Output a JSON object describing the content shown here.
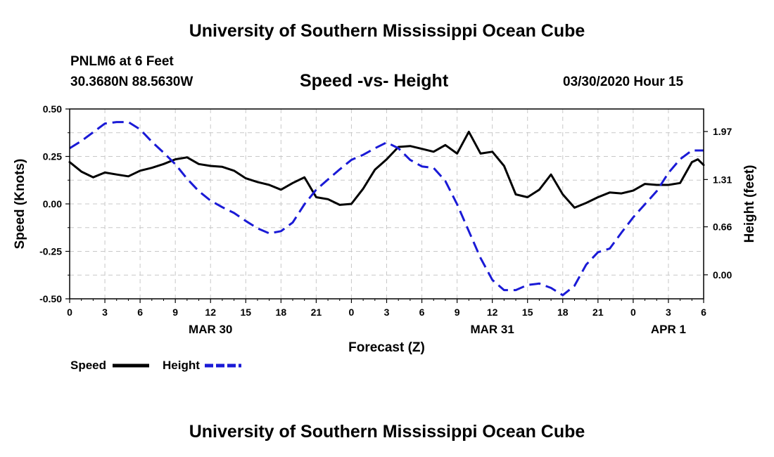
{
  "header": {
    "top_title": "University of Southern Mississippi Ocean Cube",
    "bottom_title": "University of Southern Mississippi Ocean Cube",
    "station": "PNLM6 at 6 Feet",
    "coordinates": "30.3680N 88.5630W",
    "chart_title": "Speed -vs- Height",
    "datetime": "03/30/2020 Hour 15"
  },
  "chart_data": {
    "type": "line",
    "title": "Speed -vs- Height",
    "xlabel": "Forecast (Z)",
    "ylabel_left": "Speed (Knots)",
    "ylabel_right": "Height (feet)",
    "x_range_hours": [
      0,
      54
    ],
    "x_tick_labels": [
      "0",
      "3",
      "6",
      "9",
      "12",
      "15",
      "18",
      "21",
      "0",
      "3",
      "6",
      "9",
      "12",
      "15",
      "18",
      "21",
      "0",
      "3",
      "6"
    ],
    "date_labels": [
      {
        "hour": 12,
        "label": "MAR 30"
      },
      {
        "hour": 36,
        "label": "MAR 31"
      },
      {
        "hour": 51,
        "label": "APR 1"
      }
    ],
    "left_axis": {
      "range": [
        -0.5,
        0.5
      ],
      "ticks": [
        "-0.50",
        "-0.25",
        "0.00",
        "0.25",
        "0.50"
      ],
      "tick_values": [
        -0.5,
        -0.25,
        0,
        0.25,
        0.5
      ]
    },
    "right_axis": {
      "range": [
        -0.33,
        2.28
      ],
      "ticks": [
        "0.00",
        "0.66",
        "1.31",
        "1.97"
      ],
      "tick_values": [
        0,
        0.66,
        1.31,
        1.97
      ]
    },
    "grid": true,
    "legend": [
      {
        "name": "Speed",
        "color": "#000000",
        "style": "solid"
      },
      {
        "name": "Height",
        "color": "#1a1ad6",
        "style": "dashed"
      }
    ],
    "series": [
      {
        "name": "Speed",
        "axis": "left",
        "color": "#000000",
        "style": "solid",
        "points": [
          [
            0,
            0.22
          ],
          [
            1,
            0.17
          ],
          [
            2,
            0.14
          ],
          [
            3,
            0.165
          ],
          [
            4,
            0.155
          ],
          [
            5,
            0.145
          ],
          [
            6,
            0.175
          ],
          [
            7,
            0.19
          ],
          [
            8,
            0.21
          ],
          [
            9,
            0.235
          ],
          [
            10,
            0.245
          ],
          [
            11,
            0.21
          ],
          [
            12,
            0.2
          ],
          [
            13,
            0.195
          ],
          [
            14,
            0.175
          ],
          [
            15,
            0.135
          ],
          [
            16,
            0.115
          ],
          [
            17,
            0.1
          ],
          [
            18,
            0.075
          ],
          [
            19,
            0.11
          ],
          [
            20,
            0.14
          ],
          [
            21,
            0.035
          ],
          [
            22,
            0.025
          ],
          [
            23,
            -0.005
          ],
          [
            24,
            0.0
          ],
          [
            25,
            0.08
          ],
          [
            26,
            0.18
          ],
          [
            27,
            0.235
          ],
          [
            28,
            0.3
          ],
          [
            29,
            0.305
          ],
          [
            30,
            0.29
          ],
          [
            31,
            0.275
          ],
          [
            32,
            0.31
          ],
          [
            33,
            0.265
          ],
          [
            34,
            0.38
          ],
          [
            35,
            0.265
          ],
          [
            36,
            0.275
          ],
          [
            37,
            0.2
          ],
          [
            38,
            0.05
          ],
          [
            39,
            0.035
          ],
          [
            40,
            0.075
          ],
          [
            41,
            0.155
          ],
          [
            42,
            0.05
          ],
          [
            43,
            -0.02
          ],
          [
            44,
            0.005
          ],
          [
            45,
            0.035
          ],
          [
            46,
            0.06
          ],
          [
            47,
            0.055
          ],
          [
            48,
            0.07
          ],
          [
            49,
            0.105
          ],
          [
            50,
            0.1
          ],
          [
            51,
            0.1
          ],
          [
            52,
            0.11
          ],
          [
            53,
            0.22
          ],
          [
            53.5,
            0.235
          ],
          [
            54,
            0.205
          ]
        ]
      },
      {
        "name": "Height",
        "axis": "right",
        "color": "#1a1ad6",
        "style": "dashed",
        "points": [
          [
            0,
            1.74
          ],
          [
            1,
            1.84
          ],
          [
            2,
            1.96
          ],
          [
            3,
            2.08
          ],
          [
            4,
            2.1
          ],
          [
            5,
            2.1
          ],
          [
            6,
            2.0
          ],
          [
            7,
            1.83
          ],
          [
            8,
            1.68
          ],
          [
            9,
            1.52
          ],
          [
            10,
            1.32
          ],
          [
            11,
            1.15
          ],
          [
            12,
            1.02
          ],
          [
            13,
            0.93
          ],
          [
            14,
            0.85
          ],
          [
            15,
            0.74
          ],
          [
            16,
            0.64
          ],
          [
            17,
            0.57
          ],
          [
            18,
            0.6
          ],
          [
            19,
            0.72
          ],
          [
            20,
            0.97
          ],
          [
            21,
            1.17
          ],
          [
            22,
            1.31
          ],
          [
            23,
            1.45
          ],
          [
            24,
            1.58
          ],
          [
            25,
            1.65
          ],
          [
            26,
            1.74
          ],
          [
            27,
            1.82
          ],
          [
            28,
            1.74
          ],
          [
            29,
            1.58
          ],
          [
            30,
            1.49
          ],
          [
            31,
            1.47
          ],
          [
            32,
            1.29
          ],
          [
            33,
            0.97
          ],
          [
            34,
            0.6
          ],
          [
            35,
            0.23
          ],
          [
            36,
            -0.07
          ],
          [
            37,
            -0.21
          ],
          [
            38,
            -0.21
          ],
          [
            39,
            -0.14
          ],
          [
            40,
            -0.12
          ],
          [
            41,
            -0.18
          ],
          [
            42,
            -0.28
          ],
          [
            43,
            -0.15
          ],
          [
            44,
            0.14
          ],
          [
            45,
            0.31
          ],
          [
            46,
            0.36
          ],
          [
            47,
            0.58
          ],
          [
            48,
            0.79
          ],
          [
            49,
            0.97
          ],
          [
            50,
            1.15
          ],
          [
            51,
            1.4
          ],
          [
            52,
            1.59
          ],
          [
            53,
            1.71
          ],
          [
            54,
            1.71
          ]
        ]
      }
    ]
  }
}
